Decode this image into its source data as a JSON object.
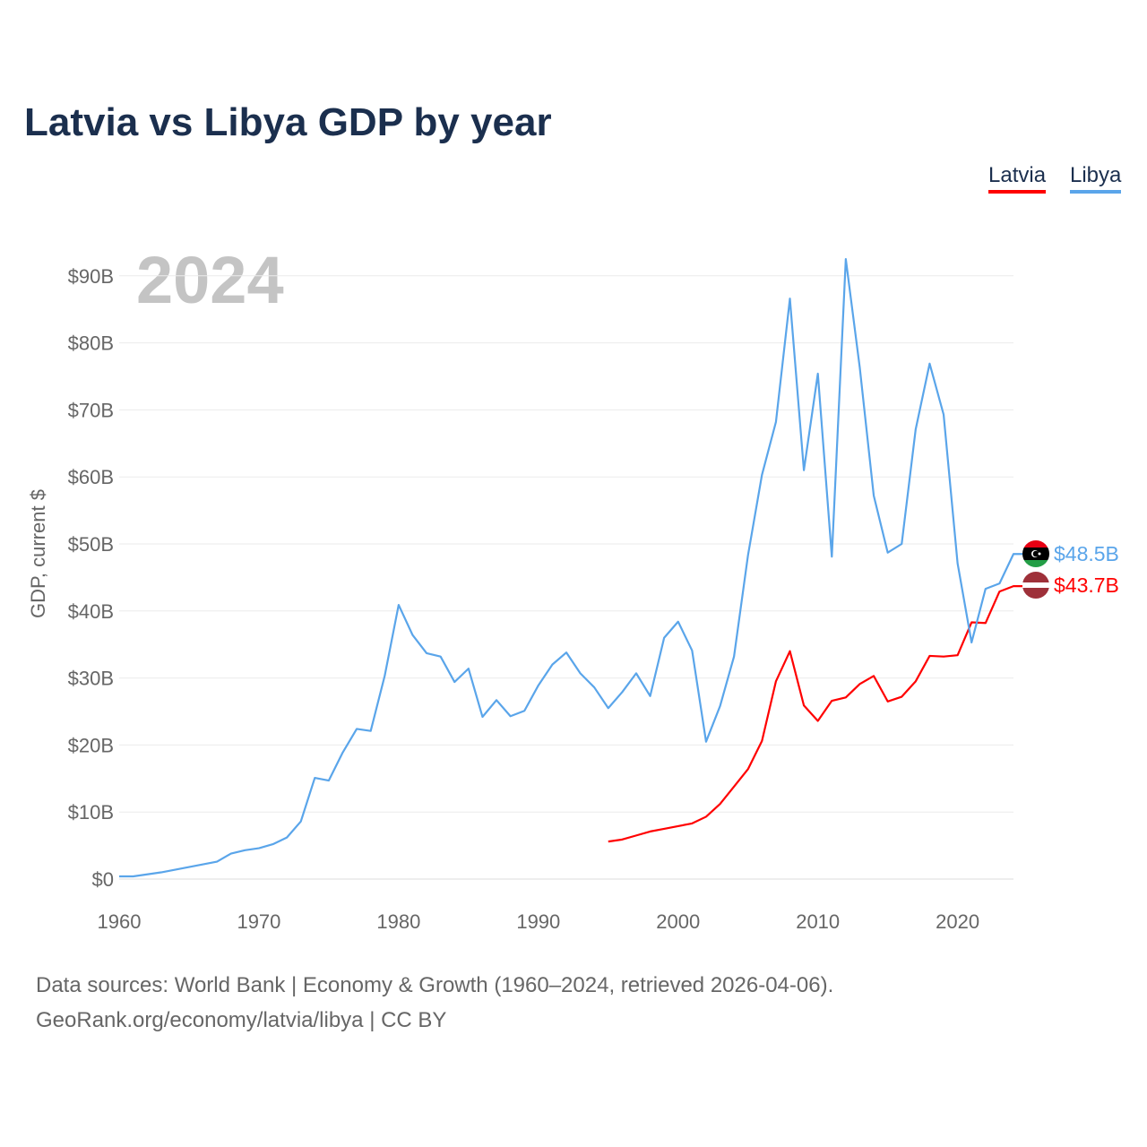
{
  "chart_data": {
    "type": "line",
    "title": "Latvia vs Libya GDP by year",
    "year_label": "2024",
    "ylabel": "GDP, current $",
    "xlabel": "",
    "xlim": [
      1960,
      2024
    ],
    "ylim": [
      0,
      95
    ],
    "x_ticks": [
      "1960",
      "1970",
      "1980",
      "1990",
      "2000",
      "2010",
      "2020"
    ],
    "y_ticks": [
      "$0",
      "$10B",
      "$20B",
      "$30B",
      "$40B",
      "$50B",
      "$60B",
      "$70B",
      "$80B",
      "$90B"
    ],
    "legend": "top-right",
    "series": [
      {
        "name": "Latvia",
        "color": "#ff0000",
        "start_year": 1995,
        "end_label": "$43.7B",
        "values": [
          5.6,
          5.9,
          6.5,
          7.1,
          7.5,
          7.9,
          8.3,
          9.3,
          11.2,
          13.8,
          16.4,
          20.6,
          29.5,
          34.0,
          25.9,
          23.6,
          26.6,
          27.1,
          29.1,
          30.3,
          26.5,
          27.2,
          29.5,
          33.3,
          33.2,
          33.4,
          38.3,
          38.2,
          42.9,
          43.7
        ]
      },
      {
        "name": "Libya",
        "color": "#5aa5ea",
        "start_year": 1960,
        "end_label": "$48.5B",
        "values": [
          0.4,
          0.4,
          0.7,
          1.0,
          1.4,
          1.8,
          2.2,
          2.6,
          3.8,
          4.3,
          4.6,
          5.2,
          6.2,
          8.6,
          15.1,
          14.7,
          18.9,
          22.4,
          22.1,
          30.3,
          40.9,
          36.4,
          33.7,
          33.2,
          29.4,
          31.4,
          24.2,
          26.7,
          24.3,
          25.1,
          28.9,
          32.0,
          33.8,
          30.7,
          28.6,
          25.5,
          27.9,
          30.7,
          27.3,
          36.0,
          38.4,
          34.1,
          20.5,
          25.8,
          33.2,
          48.3,
          60.3,
          68.2,
          86.6,
          61.0,
          75.4,
          48.1,
          92.5,
          76.3,
          57.2,
          48.7,
          50.0,
          67.1,
          76.9,
          69.3,
          47.1,
          35.3,
          43.3,
          44.1,
          48.5
        ]
      }
    ]
  },
  "footer": {
    "line1": "Data sources: World Bank | Economy & Growth (1960–2024, retrieved 2026-04-06).",
    "line2": "GeoRank.org/economy/latvia/libya | CC BY"
  }
}
